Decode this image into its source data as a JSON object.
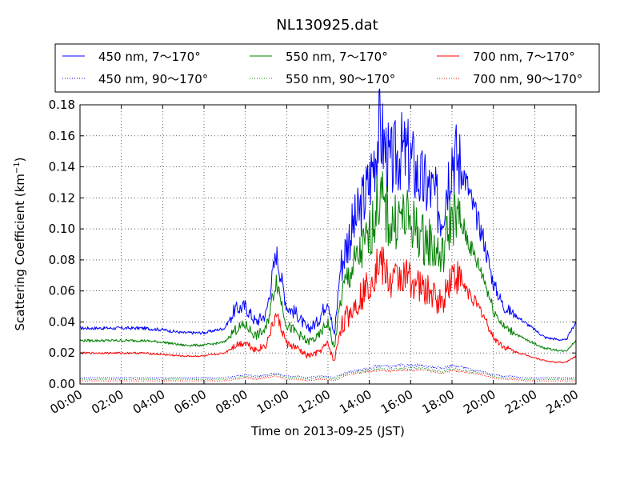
{
  "chart_data": {
    "type": "line",
    "title": "NL130925.dat",
    "xlabel": "Time on 2013-09-25 (JST)",
    "ylabel_main": "Scattering Coefficient (km",
    "ylabel_sup": "−1",
    "ylabel_end": ")",
    "xlim": [
      0,
      24
    ],
    "ylim": [
      0,
      0.18
    ],
    "x_ticks": [
      0,
      2,
      4,
      6,
      8,
      10,
      12,
      14,
      16,
      18,
      20,
      22,
      24
    ],
    "x_tick_labels": [
      "00:00",
      "02:00",
      "04:00",
      "06:00",
      "08:00",
      "10:00",
      "12:00",
      "14:00",
      "16:00",
      "18:00",
      "20:00",
      "22:00",
      "24:00"
    ],
    "y_ticks": [
      0,
      0.02,
      0.04,
      0.06,
      0.08,
      0.1,
      0.12,
      0.14,
      0.16,
      0.18
    ],
    "y_tick_labels": [
      "0.00",
      "0.02",
      "0.04",
      "0.06",
      "0.08",
      "0.10",
      "0.12",
      "0.14",
      "0.16",
      "0.18"
    ],
    "grid": true,
    "legend_position": "top",
    "x_hours": [
      0,
      1,
      2,
      3,
      4,
      5,
      6,
      7,
      7.5,
      8,
      8.5,
      9,
      9.5,
      10,
      10.5,
      11,
      11.5,
      12,
      12.3,
      12.6,
      13,
      13.5,
      14,
      14.5,
      15,
      15.5,
      16,
      16.5,
      17,
      17.5,
      18,
      18.5,
      19,
      19.5,
      20,
      20.5,
      21,
      21.5,
      22,
      22.5,
      23,
      23.5,
      24
    ],
    "series": [
      {
        "name": "450 nm, 7～170°",
        "color": "#0000ff",
        "style": "solid",
        "values": [
          0.036,
          0.036,
          0.036,
          0.036,
          0.035,
          0.033,
          0.033,
          0.036,
          0.048,
          0.05,
          0.04,
          0.045,
          0.085,
          0.05,
          0.045,
          0.035,
          0.04,
          0.055,
          0.03,
          0.075,
          0.095,
          0.11,
          0.13,
          0.165,
          0.14,
          0.15,
          0.145,
          0.13,
          0.125,
          0.11,
          0.15,
          0.14,
          0.115,
          0.095,
          0.065,
          0.05,
          0.045,
          0.04,
          0.035,
          0.03,
          0.029,
          0.028,
          0.04
        ]
      },
      {
        "name": "450 nm, 90～170°",
        "color": "#0000ff",
        "style": "dotted",
        "values": [
          0.004,
          0.004,
          0.004,
          0.004,
          0.004,
          0.004,
          0.004,
          0.004,
          0.005,
          0.006,
          0.005,
          0.006,
          0.007,
          0.005,
          0.005,
          0.004,
          0.005,
          0.005,
          0.004,
          0.006,
          0.008,
          0.009,
          0.01,
          0.012,
          0.011,
          0.012,
          0.012,
          0.012,
          0.011,
          0.01,
          0.012,
          0.011,
          0.009,
          0.008,
          0.006,
          0.005,
          0.005,
          0.004,
          0.004,
          0.004,
          0.004,
          0.004,
          0.004
        ]
      },
      {
        "name": "550 nm, 7～170°",
        "color": "#008000",
        "style": "solid",
        "values": [
          0.028,
          0.028,
          0.028,
          0.028,
          0.027,
          0.025,
          0.025,
          0.027,
          0.035,
          0.038,
          0.031,
          0.035,
          0.068,
          0.038,
          0.033,
          0.027,
          0.03,
          0.04,
          0.022,
          0.055,
          0.07,
          0.082,
          0.095,
          0.122,
          0.102,
          0.108,
          0.105,
          0.095,
          0.09,
          0.08,
          0.11,
          0.102,
          0.085,
          0.07,
          0.048,
          0.037,
          0.033,
          0.029,
          0.026,
          0.023,
          0.022,
          0.021,
          0.028
        ]
      },
      {
        "name": "550 nm, 90～170°",
        "color": "#008000",
        "style": "dotted",
        "values": [
          0.003,
          0.003,
          0.003,
          0.003,
          0.003,
          0.003,
          0.003,
          0.003,
          0.004,
          0.005,
          0.004,
          0.005,
          0.006,
          0.004,
          0.004,
          0.003,
          0.004,
          0.004,
          0.003,
          0.005,
          0.007,
          0.008,
          0.009,
          0.01,
          0.009,
          0.01,
          0.01,
          0.01,
          0.009,
          0.008,
          0.01,
          0.009,
          0.008,
          0.007,
          0.005,
          0.004,
          0.004,
          0.003,
          0.003,
          0.003,
          0.003,
          0.003,
          0.003
        ]
      },
      {
        "name": "700 nm, 7～170°",
        "color": "#ff0000",
        "style": "solid",
        "values": [
          0.02,
          0.02,
          0.02,
          0.02,
          0.019,
          0.018,
          0.018,
          0.02,
          0.025,
          0.027,
          0.022,
          0.025,
          0.045,
          0.026,
          0.023,
          0.018,
          0.02,
          0.026,
          0.014,
          0.036,
          0.045,
          0.055,
          0.065,
          0.08,
          0.065,
          0.07,
          0.068,
          0.062,
          0.058,
          0.052,
          0.072,
          0.065,
          0.055,
          0.045,
          0.03,
          0.024,
          0.021,
          0.019,
          0.017,
          0.015,
          0.014,
          0.014,
          0.018
        ]
      },
      {
        "name": "700 nm, 90～170°",
        "color": "#ff0000",
        "style": "dotted",
        "values": [
          0.002,
          0.002,
          0.002,
          0.002,
          0.002,
          0.002,
          0.002,
          0.002,
          0.003,
          0.004,
          0.003,
          0.004,
          0.005,
          0.003,
          0.003,
          0.002,
          0.003,
          0.003,
          0.002,
          0.004,
          0.006,
          0.007,
          0.008,
          0.009,
          0.008,
          0.009,
          0.009,
          0.009,
          0.008,
          0.007,
          0.009,
          0.008,
          0.007,
          0.006,
          0.004,
          0.003,
          0.003,
          0.002,
          0.002,
          0.002,
          0.002,
          0.002,
          0.002
        ]
      }
    ]
  }
}
